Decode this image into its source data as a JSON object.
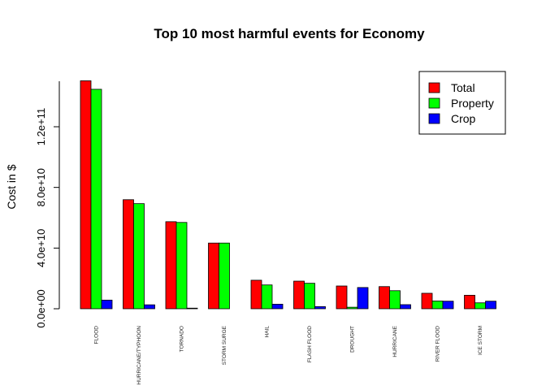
{
  "chart_data": {
    "type": "bar",
    "title": "Top 10 most harmful events for Economy",
    "xlabel": "",
    "ylabel": "Cost in $",
    "ylim": [
      0,
      150000000000
    ],
    "yticks": [
      0,
      40000000000,
      80000000000,
      120000000000
    ],
    "ytick_labels": [
      "0.0e+00",
      "4.0e+10",
      "8.0e+10",
      "1.2e+11"
    ],
    "categories": [
      "FLOOD",
      "HURRICANE/TYPHOON",
      "TORNADO",
      "STORM SURGE",
      "HAIL",
      "FLASH FLOOD",
      "DROUGHT",
      "HURRICANE",
      "RIVER FLOOD",
      "ICE STORM"
    ],
    "series": [
      {
        "name": "Total",
        "color": "#ff0000",
        "values": [
          150300000000,
          71900000000,
          57400000000,
          43300000000,
          18800000000,
          18200000000,
          15000000000,
          14600000000,
          10200000000,
          8900000000
        ]
      },
      {
        "name": "Property",
        "color": "#00ff00",
        "values": [
          144700000000,
          69300000000,
          56900000000,
          43300000000,
          15700000000,
          16800000000,
          1000000000,
          11900000000,
          5100000000,
          3900000000
        ]
      },
      {
        "name": "Crop",
        "color": "#0000ff",
        "values": [
          5700000000,
          2600000000,
          400000000,
          0,
          3000000000,
          1400000000,
          14000000000,
          2700000000,
          5000000000,
          5000000000
        ]
      }
    ],
    "grid": false,
    "legend_position": "top-right"
  }
}
